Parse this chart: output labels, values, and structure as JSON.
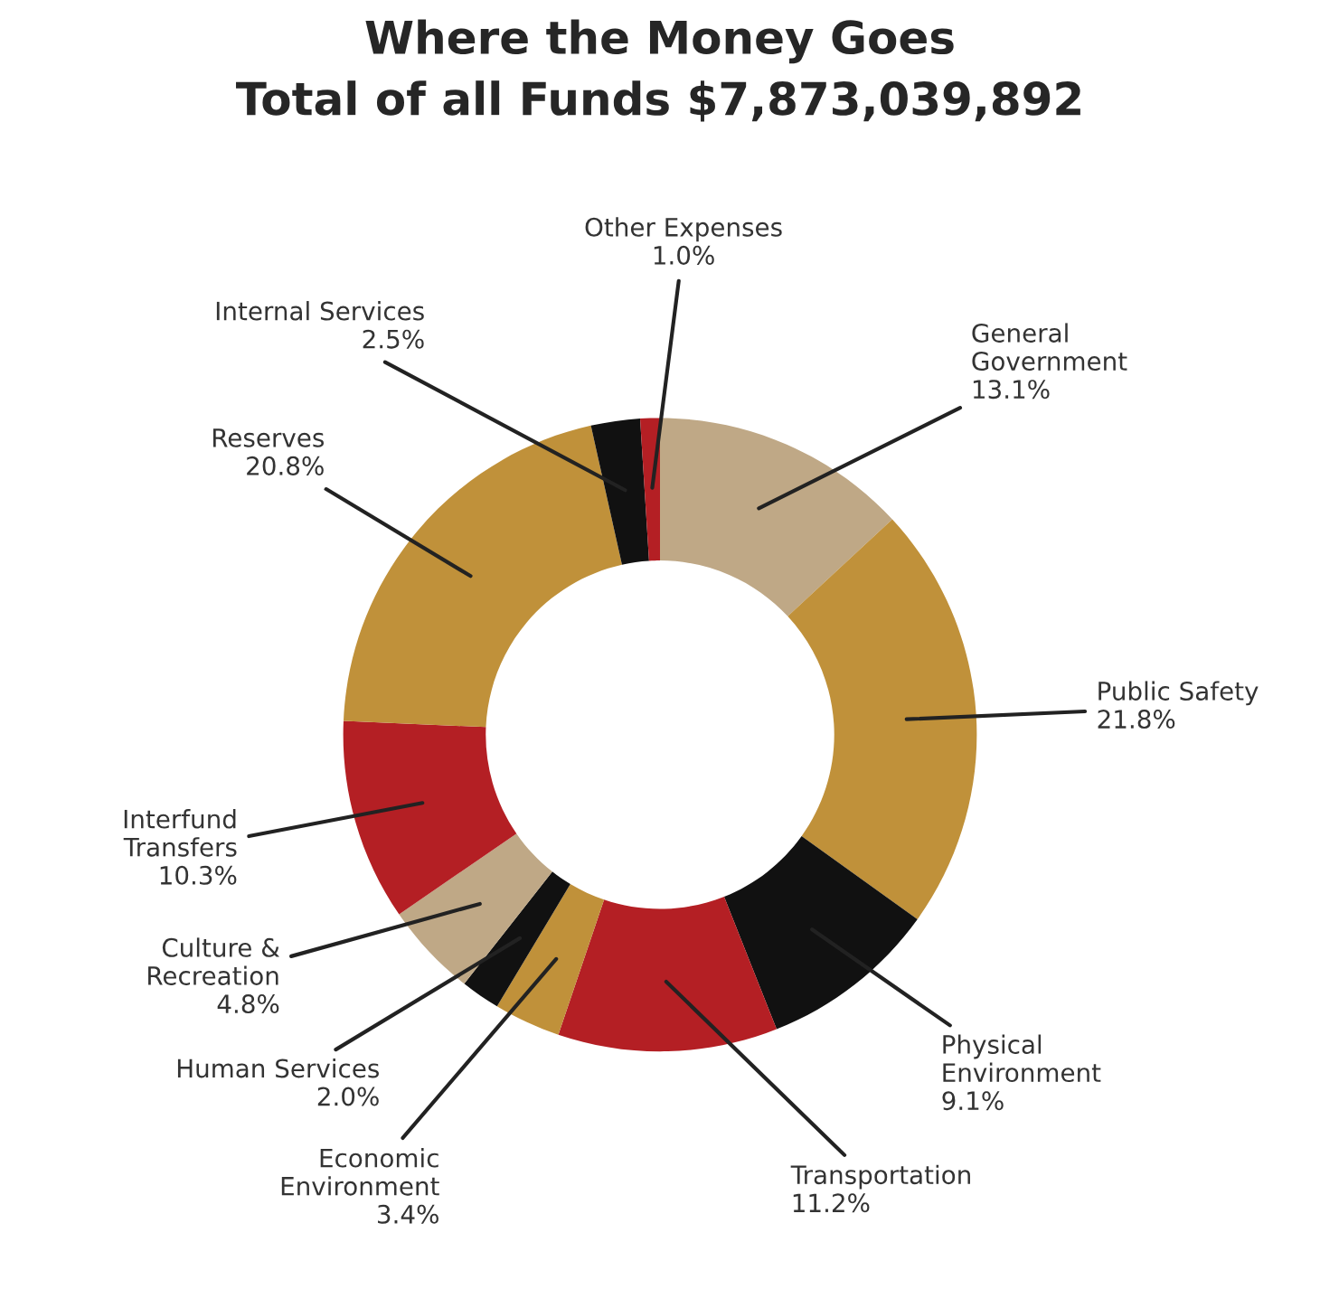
{
  "chart_data": {
    "type": "donut",
    "title": "Where the Money Goes\nTotal of all Funds $7,873,039,892",
    "categories": [
      "General\nGovernment",
      "Public Safety",
      "Physical\nEnvironment",
      "Transportation",
      "Economic\nEnvironment",
      "Human Services",
      "Culture &\nRecreation",
      "Interfund\nTransfers",
      "Reserves",
      "Internal Services",
      "Other Expenses"
    ],
    "values": [
      13.1,
      21.8,
      9.1,
      11.2,
      3.4,
      2.0,
      4.8,
      10.3,
      20.8,
      2.5,
      1.0
    ],
    "value_labels": [
      "13.1%",
      "21.8%",
      "9.1%",
      "11.2%",
      "3.4%",
      "2.0%",
      "4.8%",
      "10.3%",
      "20.8%",
      "2.5%",
      "1.0%"
    ],
    "colors": [
      "#bfa886",
      "#c0913a",
      "#111111",
      "#b41f24",
      "#c0913a",
      "#111111",
      "#bfa886",
      "#b41f24",
      "#c0913a",
      "#111111",
      "#b41f24"
    ],
    "legend": false
  }
}
